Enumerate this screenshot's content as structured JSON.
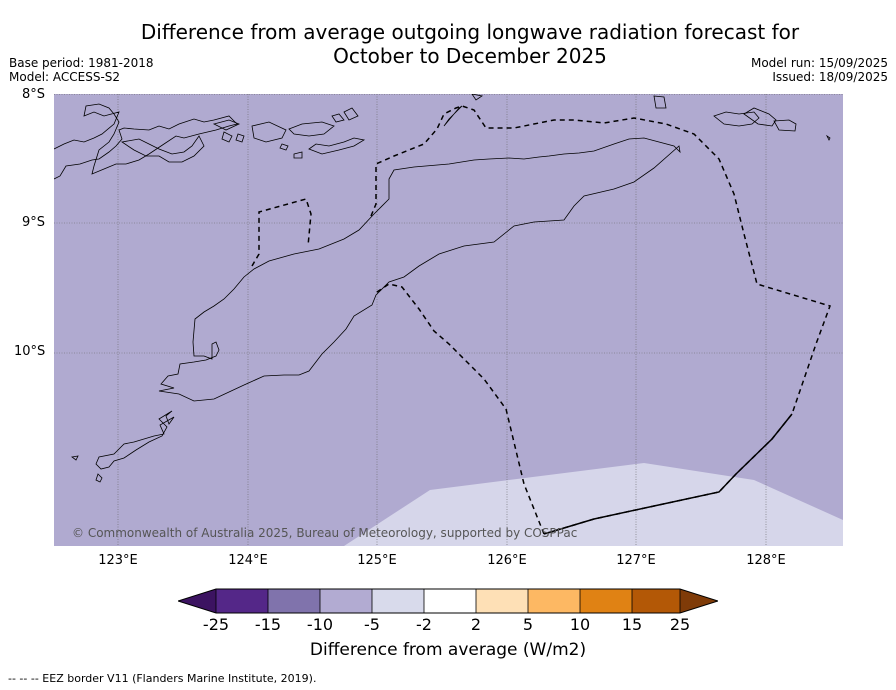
{
  "title": {
    "line1": "Difference from average outgoing longwave radiation forecast for",
    "line2": "October to December 2025"
  },
  "meta_left": {
    "base_period": "Base period: 1981-2018",
    "model": "Model: ACCESS-S2"
  },
  "meta_right": {
    "model_run": "Model run: 15/09/2025",
    "issued": "Issued: 18/09/2025"
  },
  "lat_labels": [
    "8°S",
    "9°S",
    "10°S"
  ],
  "lon_labels": [
    "123°E",
    "124°E",
    "125°E",
    "126°E",
    "127°E",
    "128°E"
  ],
  "copyright": "© Commonwealth of Australia 2025, Bureau of Meteorology, supported by COSPPac",
  "colors": {
    "below_minus5": "#b0aad0",
    "minus5_to_minus2": "#d6d6ea",
    "bins": [
      "#3c1361",
      "#542788",
      "#8073ac",
      "#b2abd2",
      "#d8daeb",
      "#ffffff",
      "#fee0b6",
      "#fdb863",
      "#e08214",
      "#b35806",
      "#7f3b08"
    ]
  },
  "colorbar": {
    "ticks": [
      "-25",
      "-15",
      "-10",
      "-5",
      "-2",
      "2",
      "5",
      "10",
      "15",
      "25"
    ],
    "label": "Difference from average (W/m2)"
  },
  "footnote": "--  --  -- EEZ border V11 (Flanders Marine Institute, 2019)."
}
